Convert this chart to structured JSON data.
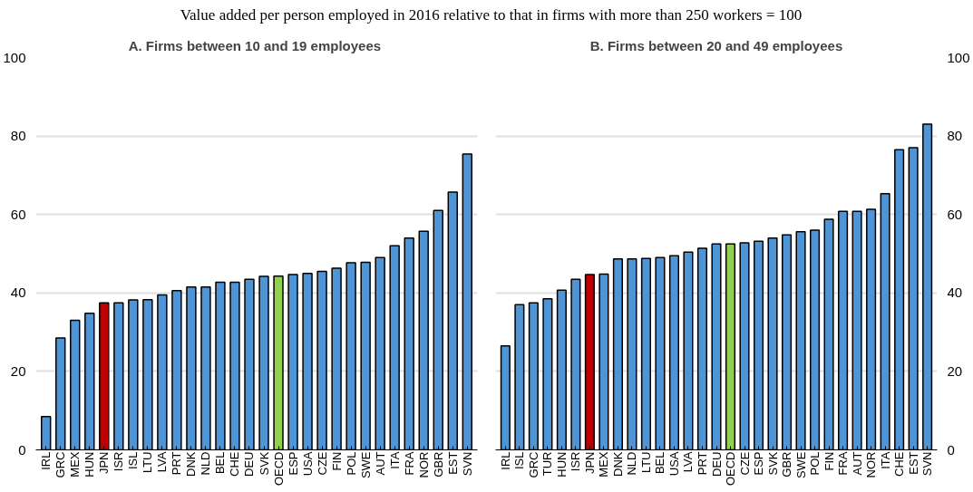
{
  "chart_data": [
    {
      "type": "bar",
      "subtitle": "Value added per person employed in 2016 relative to that in firms with more than 250 workers = 100",
      "title": "A.  Firms between 10 and 19 employees",
      "categories": [
        "IRL",
        "GRC",
        "MEX",
        "HUN",
        "JPN",
        "ISR",
        "ISL",
        "LTU",
        "LVA",
        "PRT",
        "DNK",
        "NLD",
        "BEL",
        "CHE",
        "DEU",
        "SVK",
        "OECD",
        "ESP",
        "USA",
        "CZE",
        "FIN",
        "POL",
        "SWE",
        "AUT",
        "ITA",
        "FRA",
        "NOR",
        "GBR",
        "EST",
        "SVN"
      ],
      "values": [
        8.5,
        28.5,
        33,
        34.8,
        37.5,
        37.5,
        38.2,
        38.3,
        39.5,
        40.6,
        41.5,
        41.5,
        42.7,
        42.7,
        43.5,
        44.2,
        44.3,
        44.7,
        45,
        45.5,
        46.3,
        47.7,
        47.8,
        49,
        52,
        54,
        55.7,
        61,
        65.7,
        75.4
      ],
      "colors": [
        "#4f94d4",
        "#4f94d4",
        "#4f94d4",
        "#4f94d4",
        "#c00000",
        "#4f94d4",
        "#4f94d4",
        "#4f94d4",
        "#4f94d4",
        "#4f94d4",
        "#4f94d4",
        "#4f94d4",
        "#4f94d4",
        "#4f94d4",
        "#4f94d4",
        "#4f94d4",
        "#92d050",
        "#4f94d4",
        "#4f94d4",
        "#4f94d4",
        "#4f94d4",
        "#4f94d4",
        "#4f94d4",
        "#4f94d4",
        "#4f94d4",
        "#4f94d4",
        "#4f94d4",
        "#4f94d4",
        "#4f94d4",
        "#4f94d4"
      ],
      "ylim": [
        0,
        100
      ],
      "yticks": [
        0,
        20,
        40,
        60,
        80,
        100
      ],
      "grid": "y"
    },
    {
      "type": "bar",
      "title": "B. Firms between 20 and 49 employees",
      "categories": [
        "IRL",
        "ISL",
        "GRC",
        "TUR",
        "HUN",
        "ISR",
        "JPN",
        "MEX",
        "DNK",
        "NLD",
        "LTU",
        "BEL",
        "USA",
        "LVA",
        "PRT",
        "DEU",
        "OECD",
        "CZE",
        "ESP",
        "SVK",
        "GBR",
        "SWE",
        "POL",
        "FIN",
        "FRA",
        "AUT",
        "NOR",
        "ITA",
        "CHE",
        "EST",
        "SVN"
      ],
      "values": [
        26.5,
        37,
        37.5,
        38.5,
        40.7,
        43.5,
        44.7,
        44.8,
        48.7,
        48.7,
        48.8,
        49,
        49.5,
        50.4,
        51.4,
        52.5,
        52.5,
        52.8,
        53.2,
        54,
        54.8,
        55.6,
        56,
        58.8,
        60.8,
        60.8,
        61.3,
        65.3,
        76.5,
        77,
        83
      ],
      "colors": [
        "#4f94d4",
        "#4f94d4",
        "#4f94d4",
        "#4f94d4",
        "#4f94d4",
        "#4f94d4",
        "#c00000",
        "#4f94d4",
        "#4f94d4",
        "#4f94d4",
        "#4f94d4",
        "#4f94d4",
        "#4f94d4",
        "#4f94d4",
        "#4f94d4",
        "#4f94d4",
        "#92d050",
        "#4f94d4",
        "#4f94d4",
        "#4f94d4",
        "#4f94d4",
        "#4f94d4",
        "#4f94d4",
        "#4f94d4",
        "#4f94d4",
        "#4f94d4",
        "#4f94d4",
        "#4f94d4",
        "#4f94d4",
        "#4f94d4",
        "#4f94d4"
      ],
      "ylim": [
        0,
        100
      ],
      "yticks": [
        0,
        20,
        40,
        60,
        80,
        100
      ],
      "grid": "y"
    }
  ]
}
